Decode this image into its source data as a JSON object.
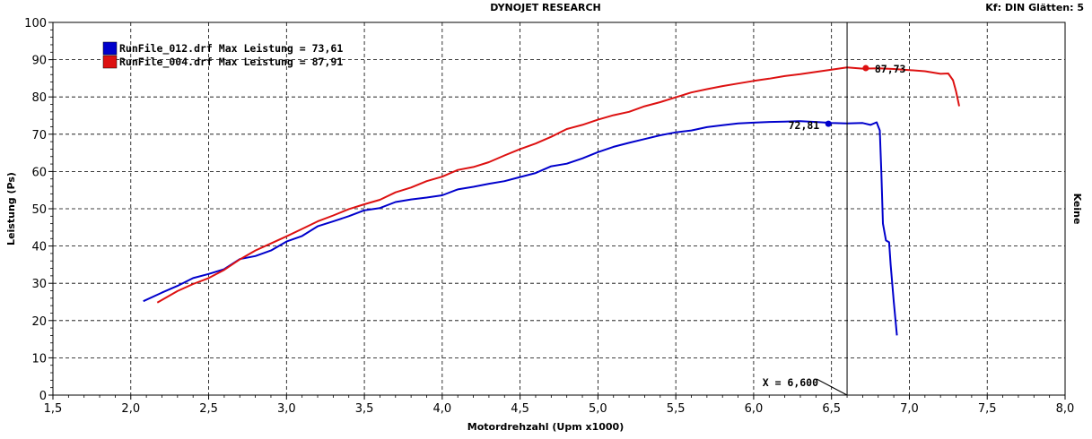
{
  "header": {
    "title": "DYNOJET RESEARCH",
    "correction": "Kf: DIN  Glätten: 5"
  },
  "right_label": "Keine",
  "cursor": {
    "x_value": 6.6,
    "label": "X = 6,600"
  },
  "colors": {
    "series_1": "#0000cc",
    "series_2": "#dd1111",
    "grid": "#000000"
  },
  "chart_data": {
    "type": "line",
    "xlabel": "Motordrehzahl (Upm x1000)",
    "ylabel": "Leistung (Ps)",
    "xlim": [
      1.5,
      8.0
    ],
    "ylim": [
      0,
      100
    ],
    "x_ticks": [
      "1,5",
      "2,0",
      "2,5",
      "3,0",
      "3,5",
      "4,0",
      "4,5",
      "5,0",
      "5,5",
      "6,0",
      "6,5",
      "7,0",
      "7,5",
      "8,0"
    ],
    "y_ticks": [
      "0",
      "10",
      "20",
      "30",
      "40",
      "50",
      "60",
      "70",
      "80",
      "90",
      "100"
    ],
    "grid": true,
    "legend_position": "top-left",
    "series": [
      {
        "name": "RunFile_012.drf Max Leistung = 73,61",
        "color": "#0000cc",
        "marker": {
          "x": 6.48,
          "y": 72.81,
          "label": "72,81"
        },
        "points": [
          [
            2.08,
            25.2
          ],
          [
            2.2,
            27.5
          ],
          [
            2.3,
            29.3
          ],
          [
            2.4,
            31.4
          ],
          [
            2.5,
            32.5
          ],
          [
            2.6,
            33.8
          ],
          [
            2.7,
            36.5
          ],
          [
            2.8,
            37.3
          ],
          [
            2.9,
            38.8
          ],
          [
            3.0,
            41.2
          ],
          [
            3.1,
            42.7
          ],
          [
            3.2,
            45.3
          ],
          [
            3.3,
            46.6
          ],
          [
            3.4,
            48.0
          ],
          [
            3.5,
            49.6
          ],
          [
            3.6,
            50.2
          ],
          [
            3.7,
            51.8
          ],
          [
            3.8,
            52.5
          ],
          [
            3.9,
            53.0
          ],
          [
            4.0,
            53.6
          ],
          [
            4.1,
            55.2
          ],
          [
            4.2,
            55.9
          ],
          [
            4.3,
            56.7
          ],
          [
            4.4,
            57.4
          ],
          [
            4.5,
            58.5
          ],
          [
            4.6,
            59.6
          ],
          [
            4.7,
            61.4
          ],
          [
            4.8,
            62.1
          ],
          [
            4.9,
            63.5
          ],
          [
            5.0,
            65.2
          ],
          [
            5.1,
            66.6
          ],
          [
            5.2,
            67.7
          ],
          [
            5.3,
            68.7
          ],
          [
            5.4,
            69.7
          ],
          [
            5.5,
            70.5
          ],
          [
            5.6,
            71.0
          ],
          [
            5.7,
            71.9
          ],
          [
            5.8,
            72.4
          ],
          [
            5.9,
            72.9
          ],
          [
            6.0,
            73.1
          ],
          [
            6.1,
            73.3
          ],
          [
            6.2,
            73.4
          ],
          [
            6.3,
            73.5
          ],
          [
            6.4,
            73.3
          ],
          [
            6.5,
            73.0
          ],
          [
            6.6,
            72.9
          ],
          [
            6.7,
            73.0
          ],
          [
            6.75,
            72.5
          ],
          [
            6.79,
            73.2
          ],
          [
            6.81,
            71.0
          ],
          [
            6.82,
            60.0
          ],
          [
            6.83,
            46.0
          ],
          [
            6.85,
            41.5
          ],
          [
            6.87,
            41.0
          ],
          [
            6.88,
            35.0
          ],
          [
            6.9,
            25.0
          ],
          [
            6.92,
            16.0
          ]
        ]
      },
      {
        "name": "RunFile_004.drf Max Leistung = 87,91",
        "color": "#dd1111",
        "marker": {
          "x": 6.72,
          "y": 87.73,
          "label": "87,73"
        },
        "points": [
          [
            2.17,
            24.8
          ],
          [
            2.3,
            27.9
          ],
          [
            2.4,
            29.8
          ],
          [
            2.5,
            31.4
          ],
          [
            2.6,
            33.6
          ],
          [
            2.7,
            36.4
          ],
          [
            2.8,
            38.8
          ],
          [
            2.9,
            40.7
          ],
          [
            3.0,
            42.6
          ],
          [
            3.1,
            44.6
          ],
          [
            3.2,
            46.6
          ],
          [
            3.3,
            48.2
          ],
          [
            3.4,
            49.9
          ],
          [
            3.5,
            51.2
          ],
          [
            3.6,
            52.4
          ],
          [
            3.7,
            54.4
          ],
          [
            3.8,
            55.7
          ],
          [
            3.9,
            57.4
          ],
          [
            4.0,
            58.6
          ],
          [
            4.1,
            60.4
          ],
          [
            4.2,
            61.2
          ],
          [
            4.3,
            62.5
          ],
          [
            4.4,
            64.3
          ],
          [
            4.5,
            66.0
          ],
          [
            4.6,
            67.5
          ],
          [
            4.7,
            69.3
          ],
          [
            4.8,
            71.4
          ],
          [
            4.9,
            72.5
          ],
          [
            5.0,
            73.9
          ],
          [
            5.1,
            75.1
          ],
          [
            5.2,
            76.0
          ],
          [
            5.3,
            77.5
          ],
          [
            5.4,
            78.6
          ],
          [
            5.5,
            79.9
          ],
          [
            5.6,
            81.2
          ],
          [
            5.7,
            82.1
          ],
          [
            5.8,
            82.9
          ],
          [
            5.9,
            83.6
          ],
          [
            6.0,
            84.3
          ],
          [
            6.1,
            84.9
          ],
          [
            6.2,
            85.6
          ],
          [
            6.3,
            86.1
          ],
          [
            6.4,
            86.7
          ],
          [
            6.5,
            87.3
          ],
          [
            6.6,
            87.9
          ],
          [
            6.7,
            87.6
          ],
          [
            6.8,
            87.7
          ],
          [
            6.9,
            87.5
          ],
          [
            7.0,
            87.2
          ],
          [
            7.1,
            86.9
          ],
          [
            7.2,
            86.2
          ],
          [
            7.25,
            86.3
          ],
          [
            7.28,
            84.5
          ],
          [
            7.3,
            81.5
          ],
          [
            7.32,
            77.5
          ]
        ]
      }
    ]
  }
}
